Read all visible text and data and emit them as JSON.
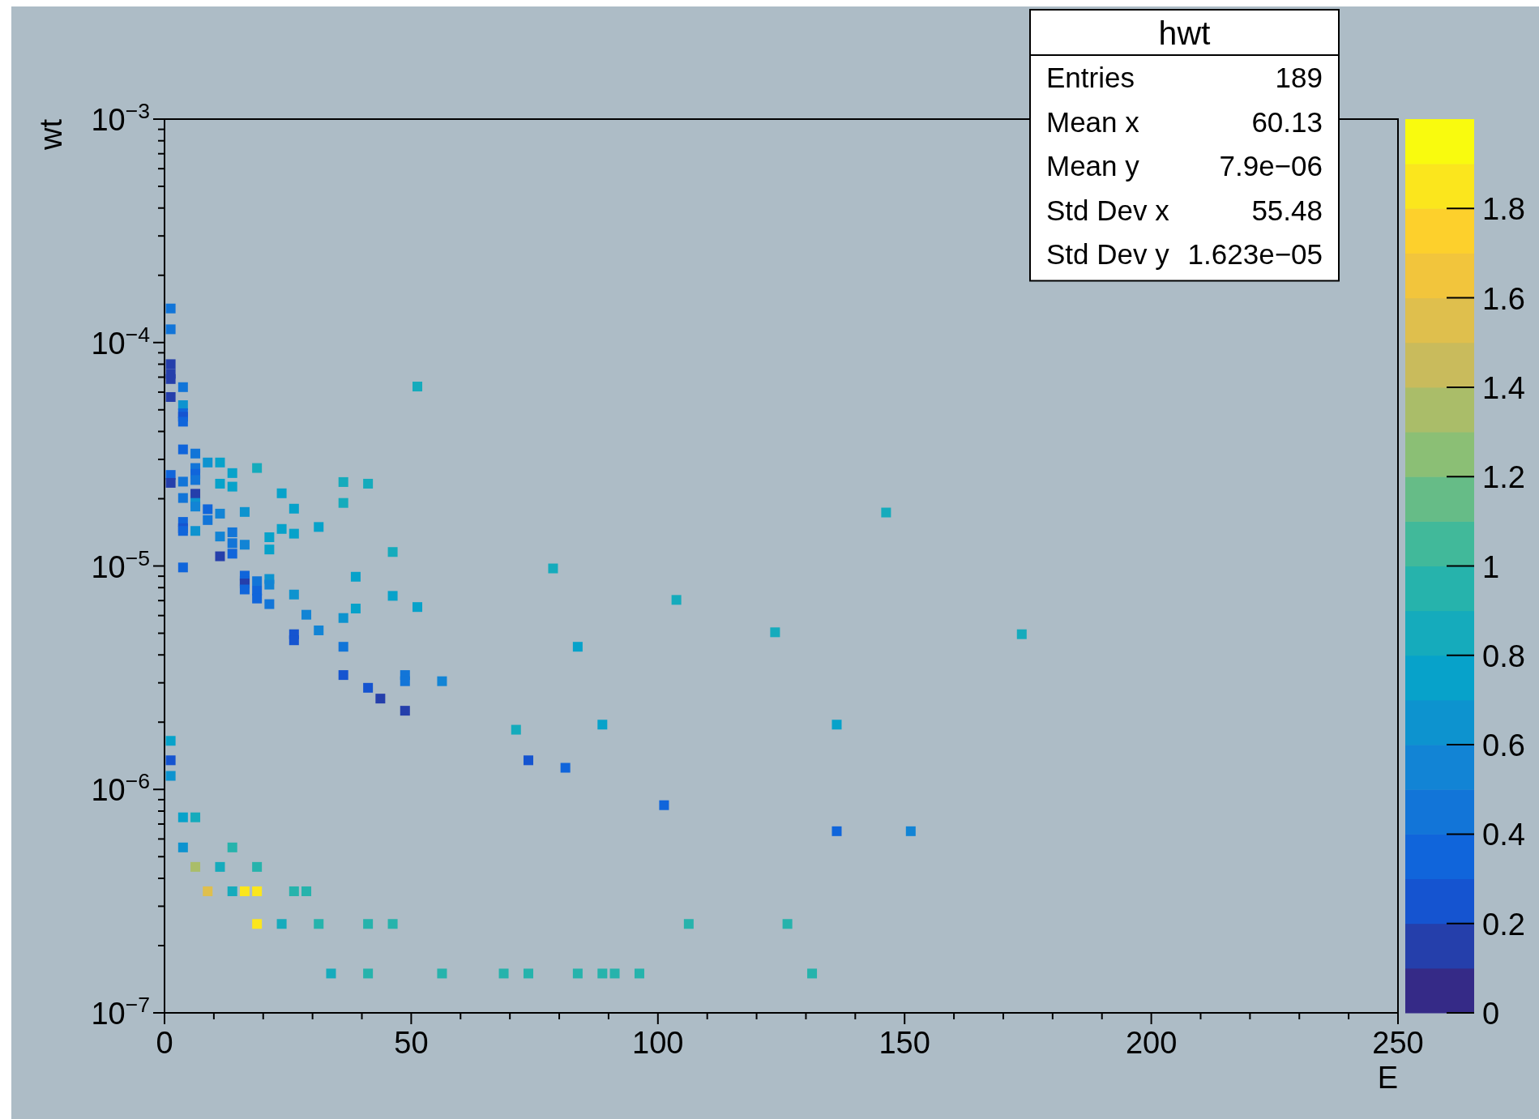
{
  "chart_data": {
    "type": "scatter",
    "title": "hwt",
    "xlabel": "E",
    "ylabel": "wt",
    "marker": "square",
    "log": "y",
    "xlim": [
      0,
      250
    ],
    "xticks": [
      0,
      {
        "value": 10,
        "label": null
      },
      {
        "value": 20,
        "label": null
      },
      {
        "value": 30,
        "label": null
      },
      {
        "value": 40,
        "label": null
      },
      50,
      {
        "value": 60,
        "label": null
      },
      {
        "value": 70,
        "label": null
      },
      {
        "value": 80,
        "label": null
      },
      {
        "value": 90,
        "label": null
      },
      100,
      {
        "value": 110,
        "label": null
      },
      {
        "value": 120,
        "label": null
      },
      {
        "value": 130,
        "label": null
      },
      {
        "value": 140,
        "label": null
      },
      150,
      {
        "value": 160,
        "label": null
      },
      {
        "value": 170,
        "label": null
      },
      {
        "value": 180,
        "label": null
      },
      {
        "value": 190,
        "label": null
      },
      200,
      {
        "value": 210,
        "label": null
      },
      {
        "value": 220,
        "label": null
      },
      {
        "value": 230,
        "label": null
      },
      {
        "value": 240,
        "label": null
      },
      250
    ],
    "ylim": [
      1e-07,
      0.001
    ],
    "yticks": [
      {
        "value": 1e-07,
        "label": "10$^{−7}$"
      },
      {
        "value": 2e-07,
        "label": null
      },
      {
        "value": 3e-07,
        "label": null
      },
      {
        "value": 4e-07,
        "label": null
      },
      {
        "value": 5e-07,
        "label": null
      },
      {
        "value": 6e-07,
        "label": null
      },
      {
        "value": 7e-07,
        "label": null
      },
      {
        "value": 8e-07,
        "label": null
      },
      {
        "value": 9e-07,
        "label": null
      },
      {
        "value": 1e-06,
        "label": "10$^{−6}$"
      },
      {
        "value": 2e-06,
        "label": null
      },
      {
        "value": 3e-06,
        "label": null
      },
      {
        "value": 4e-06,
        "label": null
      },
      {
        "value": 5e-06,
        "label": null
      },
      {
        "value": 6e-06,
        "label": null
      },
      {
        "value": 7e-06,
        "label": null
      },
      {
        "value": 8e-06,
        "label": null
      },
      {
        "value": 9e-06,
        "label": null
      },
      {
        "value": 1e-05,
        "label": "10$^{−5}$"
      },
      {
        "value": 2e-05,
        "label": null
      },
      {
        "value": 3e-05,
        "label": null
      },
      {
        "value": 4e-05,
        "label": null
      },
      {
        "value": 5e-05,
        "label": null
      },
      {
        "value": 6e-05,
        "label": null
      },
      {
        "value": 7e-05,
        "label": null
      },
      {
        "value": 8e-05,
        "label": null
      },
      {
        "value": 9e-05,
        "label": null
      },
      {
        "value": 0.0001,
        "label": "10$^{−4}$"
      },
      {
        "value": 0.0002,
        "label": null
      },
      {
        "value": 0.0003,
        "label": null
      },
      {
        "value": 0.0004,
        "label": null
      },
      {
        "value": 0.0005,
        "label": null
      },
      {
        "value": 0.0006,
        "label": null
      },
      {
        "value": 0.0007,
        "label": null
      },
      {
        "value": 0.0008,
        "label": null
      },
      {
        "value": 0.0009,
        "label": null
      },
      {
        "value": 0.001,
        "label": "10$^{−3}$"
      }
    ],
    "clim": [
      0,
      2
    ],
    "cticks": [
      0,
      0.2,
      0.4,
      0.6,
      0.8,
      1,
      1.2,
      1.4,
      1.6,
      1.8
    ],
    "annotations": [
      "Entries",
      "189",
      "Mean x",
      "60.13",
      "Mean y",
      "7.9e−06",
      "Std Dev x",
      "55.48",
      "Std Dev y",
      "1.623e−05"
    ],
    "x": [
      1.25,
      1.25,
      1.25,
      1.25,
      1.25,
      1.25,
      1.25,
      1.25,
      1.25,
      1.25,
      1.25,
      3.75,
      3.75,
      3.75,
      3.75,
      3.75,
      3.75,
      3.75,
      3.75,
      3.75,
      3.75,
      3.75,
      3.75,
      3.75,
      3.75,
      6.25,
      6.25,
      6.25,
      6.25,
      6.25,
      6.25,
      6.25,
      6.25,
      6.25,
      6.25,
      8.75,
      8.75,
      8.75,
      8.75,
      11.25,
      11.25,
      11.25,
      11.25,
      11.25,
      11.25,
      13.75,
      13.75,
      13.75,
      13.75,
      13.75,
      13.75,
      13.75,
      16.25,
      16.25,
      16.25,
      16.25,
      16.25,
      16.25,
      16.25,
      18.75,
      18.75,
      18.75,
      18.75,
      18.75,
      18.75,
      18.75,
      21.25,
      21.25,
      21.25,
      21.25,
      21.25,
      23.75,
      23.75,
      23.75,
      26.25,
      26.25,
      26.25,
      26.25,
      26.25,
      26.25,
      28.75,
      28.75,
      31.25,
      31.25,
      31.25,
      33.75,
      36.25,
      36.25,
      36.25,
      36.25,
      36.25,
      38.75,
      38.75,
      41.25,
      41.25,
      41.25,
      41.25,
      43.75,
      46.25,
      46.25,
      46.25,
      48.75,
      48.75,
      48.75,
      51.25,
      51.25,
      56.25,
      56.25,
      68.75,
      71.25,
      73.75,
      73.75,
      78.75,
      81.25,
      83.75,
      83.75,
      88.75,
      88.75,
      91.25,
      96.25,
      101.25,
      103.75,
      106.25,
      123.75,
      126.25,
      131.25,
      136.25,
      136.25,
      146.25,
      151.25,
      173.75
    ],
    "values": [
      0.00014205,
      0.00011465,
      8.005e-05,
      7.245e-05,
      6.865e-05,
      5.705e-05,
      2.555e-05,
      2.355e-05,
      1.65e-06,
      1.35e-06,
      1.15e-06,
      6.315e-05,
      5.245e-05,
      4.825e-05,
      4.655e-05,
      4.425e-05,
      3.325e-05,
      2.385e-05,
      2.015e-05,
      1.575e-05,
      1.475e-05,
      1.435e-05,
      9.85e-06,
      7.5e-07,
      5.5e-07,
      3.185e-05,
      2.745e-05,
      2.585e-05,
      2.425e-05,
      2.105e-05,
      1.915e-05,
      1.845e-05,
      1.435e-05,
      7.5e-07,
      4.5e-07,
      2.905e-05,
      1.795e-05,
      1.605e-05,
      3.5e-07,
      2.905e-05,
      2.335e-05,
      1.715e-05,
      1.355e-05,
      1.105e-05,
      4.5e-07,
      2.605e-05,
      2.265e-05,
      1.415e-05,
      1.265e-05,
      1.135e-05,
      5.5e-07,
      3.5e-07,
      1.745e-05,
      1.245e-05,
      9.05e-06,
      8.55e-06,
      8.35e-06,
      7.85e-06,
      3.5e-07,
      2.745e-05,
      8.55e-06,
      7.75e-06,
      7.15e-06,
      4.5e-07,
      3.5e-07,
      2.5e-07,
      1.345e-05,
      1.185e-05,
      8.75e-06,
      8.25e-06,
      6.75e-06,
      2.115e-05,
      1.465e-05,
      2.5e-07,
      1.805e-05,
      1.395e-05,
      7.45e-06,
      4.95e-06,
      4.65e-06,
      3.5e-07,
      6.05e-06,
      3.5e-07,
      1.495e-05,
      5.15e-06,
      2.5e-07,
      1.5e-07,
      2.375e-05,
      1.915e-05,
      5.85e-06,
      4.35e-06,
      3.25e-06,
      8.95e-06,
      6.45e-06,
      2.335e-05,
      2.85e-06,
      2.5e-07,
      1.5e-07,
      2.55e-06,
      1.155e-05,
      7.35e-06,
      2.5e-07,
      3.25e-06,
      3.05e-06,
      2.25e-06,
      6.355e-05,
      6.55e-06,
      3.05e-06,
      1.5e-07,
      1.5e-07,
      1.85e-06,
      1.35e-06,
      1.5e-07,
      9.75e-06,
      1.25e-06,
      4.35e-06,
      1.5e-07,
      1.95e-06,
      1.5e-07,
      1.5e-07,
      1.5e-07,
      8.5e-07,
      7.05e-06,
      2.5e-07,
      5.05e-06,
      2.5e-07,
      1.5e-07,
      1.95e-06,
      6.5e-07,
      1.735e-05,
      6.5e-07,
      4.95e-06
    ],
    "cvalues": [
      0.45,
      0.45,
      0.15,
      0.15,
      0.15,
      0.15,
      0.35,
      0.15,
      0.75,
      0.25,
      0.65,
      0.45,
      0.65,
      0.35,
      0.25,
      0.35,
      0.35,
      0.45,
      0.45,
      0.35,
      0.25,
      0.35,
      0.35,
      0.75,
      0.65,
      0.45,
      0.45,
      0.35,
      0.45,
      0.15,
      0.65,
      0.55,
      0.65,
      0.85,
      1.35,
      0.65,
      0.35,
      0.45,
      1.55,
      0.75,
      0.75,
      0.55,
      0.55,
      0.15,
      0.85,
      0.75,
      0.75,
      0.45,
      0.45,
      0.35,
      0.95,
      0.85,
      0.65,
      0.55,
      0.35,
      0.35,
      0.15,
      0.35,
      1.85,
      0.85,
      0.45,
      0.35,
      0.35,
      0.95,
      1.85,
      1.85,
      0.75,
      0.75,
      0.65,
      0.55,
      0.45,
      0.75,
      0.75,
      0.85,
      0.75,
      0.75,
      0.65,
      0.25,
      0.25,
      0.95,
      0.55,
      0.95,
      0.75,
      0.55,
      0.95,
      0.85,
      0.85,
      0.85,
      0.65,
      0.45,
      0.25,
      0.75,
      0.75,
      0.85,
      0.25,
      0.95,
      0.95,
      0.15,
      0.85,
      0.75,
      0.95,
      0.45,
      0.45,
      0.15,
      0.85,
      0.75,
      0.55,
      0.95,
      0.95,
      0.85,
      0.25,
      0.95,
      0.85,
      0.35,
      0.75,
      0.95,
      0.75,
      0.95,
      0.95,
      0.95,
      0.35,
      0.85,
      0.95,
      0.85,
      0.95,
      0.95,
      0.75,
      0.35,
      0.85,
      0.55,
      0.85
    ]
  }
}
